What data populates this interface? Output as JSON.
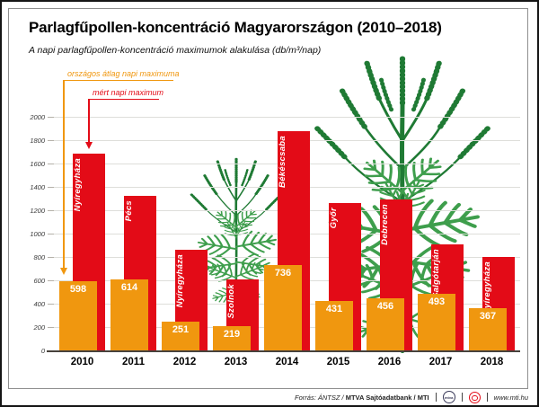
{
  "header": {
    "title": "Parlagfűpollen-koncentráció Magyarországon (2010–2018)",
    "subtitle": "A napi parlagfűpollen-koncentráció maximumok alakulása (db/m³/nap)"
  },
  "legend": {
    "avg_label": "országos átlag napi maximuma",
    "max_label": "mért napi maximum"
  },
  "colors": {
    "red": "#E30B17",
    "orange": "#F0970F",
    "green_dark": "#1F7A34",
    "green_light": "#3E9E4C",
    "grid": "#DEDEDA",
    "axis": "#47423C"
  },
  "chart_data": {
    "type": "bar",
    "title": "Parlagfűpollen-koncentráció Magyarországon (2010–2018)",
    "subtitle": "A napi parlagfűpollen-koncentráció maximumok alakulása (db/m³/nap)",
    "unit": "db/m³/nap",
    "categories": [
      "2010",
      "2011",
      "2012",
      "2013",
      "2014",
      "2015",
      "2016",
      "2017",
      "2018"
    ],
    "series": [
      {
        "name": "mért napi maximum",
        "color": "#E30B17",
        "values": [
          1690,
          1330,
          870,
          615,
          1885,
          1270,
          1300,
          915,
          810
        ],
        "labels": [
          "Nyíregyháza",
          "Pécs",
          "Nyíregyháza",
          "Szolnok",
          "Békéscsaba",
          "Győr",
          "Debrecen",
          "Salgótarján",
          "Nyíregyháza"
        ]
      },
      {
        "name": "országos átlag napi maximuma",
        "color": "#F0970F",
        "values": [
          598,
          614,
          251,
          219,
          736,
          431,
          456,
          493,
          367
        ]
      }
    ],
    "ylim": [
      0,
      2000
    ],
    "ytick_step": 200,
    "grid": true,
    "legend_position": "top-left"
  },
  "footer": {
    "source_italic": "Forrás: ÁNTSZ /",
    "source_bold": "MTVA Sajtóadatbank / MTI",
    "mtva_text": "mtva",
    "website": "www.mti.hu"
  }
}
